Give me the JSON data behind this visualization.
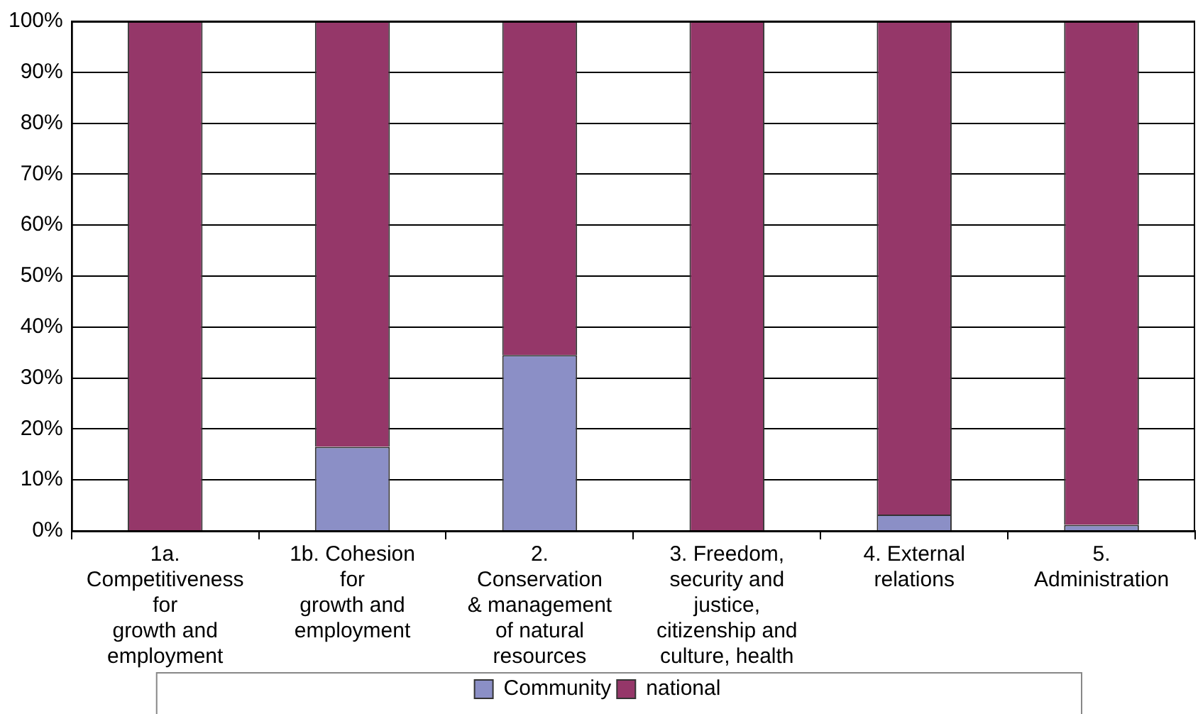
{
  "chart_data": {
    "type": "bar",
    "stacked": true,
    "categories": [
      "1a.\nCompetitiveness\nfor\ngrowth and\nemployment",
      "1b. Cohesion\nfor\ngrowth and\nemployment",
      "2.\nConservation\n& management\nof natural\nresources",
      "3. Freedom,\nsecurity and\njustice,\ncitizenship and\nculture, health",
      "4. External\nrelations",
      "5.\nAdministration"
    ],
    "series": [
      {
        "name": "Community",
        "color": "#8b8fc6",
        "values": [
          null,
          16.5,
          34.5,
          null,
          3.2,
          1.2
        ]
      },
      {
        "name": "national",
        "color": "#953769",
        "values": [
          100,
          83.5,
          65.5,
          100,
          96.8,
          98.8
        ]
      }
    ],
    "ylim": [
      0,
      100
    ],
    "yticks": [
      {
        "value": 0,
        "label": "0%"
      },
      {
        "value": 10,
        "label": "10%"
      },
      {
        "value": 20,
        "label": "20%"
      },
      {
        "value": 30,
        "label": "30%"
      },
      {
        "value": 40,
        "label": "40%"
      },
      {
        "value": 50,
        "label": "50%"
      },
      {
        "value": 60,
        "label": "60%"
      },
      {
        "value": 70,
        "label": "70%"
      },
      {
        "value": 80,
        "label": "80%"
      },
      {
        "value": 90,
        "label": "90%"
      },
      {
        "value": 100,
        "label": "100%"
      }
    ],
    "grid": "y",
    "legend": "bottom"
  }
}
